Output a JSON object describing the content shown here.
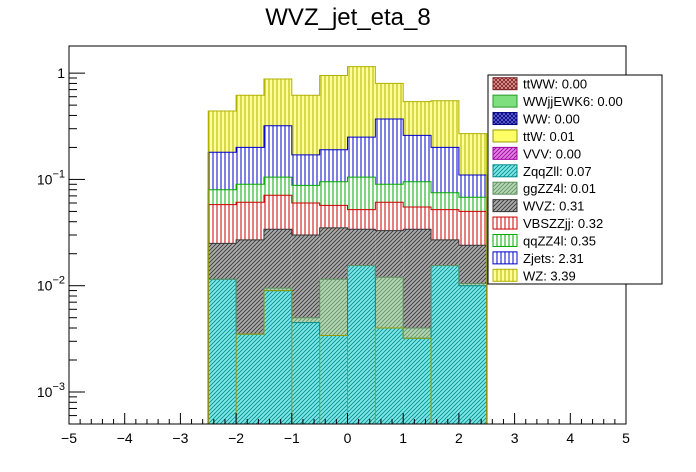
{
  "chart_data": {
    "type": "bar",
    "title": "WVZ_jet_eta_8",
    "xlabel": "",
    "ylabel": "",
    "stacked": true,
    "log_y": true,
    "xlim": [
      -5,
      5
    ],
    "ylim": [
      0.0005,
      1.8
    ],
    "grid": false,
    "legend_position": "top-right",
    "x_ticks": [
      -5,
      -4,
      -3,
      -2,
      -1,
      0,
      1,
      2,
      3,
      4,
      5
    ],
    "x_tick_labels": [
      "−5",
      "−4",
      "−3",
      "−2",
      "−1",
      "0",
      "1",
      "2",
      "3",
      "4",
      "5"
    ],
    "y_ticks": [
      0.001,
      0.01,
      0.1,
      1
    ],
    "y_tick_labels": [
      {
        "mantissa": "10",
        "exponent": "−3"
      },
      {
        "mantissa": "10",
        "exponent": "−2"
      },
      {
        "mantissa": "10",
        "exponent": "−1"
      },
      {
        "mantissa": "1",
        "exponent": ""
      }
    ],
    "bin_edges": [
      -2.5,
      -2.0,
      -1.5,
      -1.0,
      -0.5,
      0.0,
      0.5,
      1.0,
      1.5,
      2.0,
      2.5
    ],
    "stack_order": [
      "ZqqZll",
      "ggZZ4l",
      "WVZ",
      "VBSZZjj",
      "qqZZ4l",
      "Zjets",
      "WZ",
      "ttW"
    ],
    "cumulative_tops": {
      "ttW": [
        0.0005,
        0.0035,
        0.009,
        0.0005,
        0.0034,
        0.0005,
        0.004,
        0.0032,
        0.0005,
        0.0005
      ],
      "ZqqZll": [
        0.0115,
        0.0035,
        0.009,
        0.0045,
        0.0034,
        0.0155,
        0.004,
        0.0032,
        0.0155,
        0.01
      ],
      "ggZZ4l": [
        0.0115,
        0.0035,
        0.0095,
        0.005,
        0.0115,
        0.0155,
        0.012,
        0.004,
        0.0155,
        0.0105
      ],
      "WVZ": [
        0.025,
        0.027,
        0.034,
        0.03,
        0.035,
        0.034,
        0.033,
        0.034,
        0.027,
        0.024
      ],
      "VBSZZjj": [
        0.058,
        0.061,
        0.071,
        0.06,
        0.057,
        0.052,
        0.061,
        0.055,
        0.052,
        0.05
      ],
      "qqZZ4l": [
        0.08,
        0.09,
        0.105,
        0.088,
        0.095,
        0.105,
        0.09,
        0.095,
        0.075,
        0.068
      ],
      "Zjets": [
        0.18,
        0.2,
        0.32,
        0.17,
        0.19,
        0.25,
        0.37,
        0.26,
        0.2,
        0.11
      ],
      "WZ": [
        0.44,
        0.62,
        0.88,
        0.62,
        0.95,
        1.15,
        0.8,
        0.54,
        0.55,
        0.27
      ]
    },
    "legend": [
      {
        "label": "ttWW: 0.00",
        "key": "ttWW",
        "color": "#7a1f1f",
        "fill": "#e8a0a0",
        "pattern": "cross"
      },
      {
        "label": "WWjjEWK6: 0.00",
        "key": "WWjjEWK6",
        "color": "#2a9a2a",
        "fill": "#7ddf7d",
        "pattern": "solid"
      },
      {
        "label": "WW: 0.00",
        "key": "WW",
        "color": "#000080",
        "fill": "#6b6bd6",
        "pattern": "cross"
      },
      {
        "label": "ttW: 0.01",
        "key": "ttW",
        "color": "#999900",
        "fill": "#ffff66",
        "pattern": "solid"
      },
      {
        "label": "VVV: 0.00",
        "key": "VVV",
        "color": "#a000a0",
        "fill": "#e080e0",
        "pattern": "diag"
      },
      {
        "label": "ZqqZll: 0.07",
        "key": "ZqqZll",
        "color": "#008b8b",
        "fill": "#7fe7e7",
        "pattern": "diag"
      },
      {
        "label": "ggZZ4l: 0.01",
        "key": "ggZZ4l",
        "color": "#5f8f5f",
        "fill": "#b5d7b5",
        "pattern": "diag"
      },
      {
        "label": "WVZ: 0.31",
        "key": "WVZ",
        "color": "#333333",
        "fill": "#aaaaaa",
        "pattern": "diag"
      },
      {
        "label": "VBSZZjj: 0.32",
        "key": "VBSZZjj",
        "color": "#cc0000",
        "fill": "#ffffff",
        "pattern": "vert"
      },
      {
        "label": "qqZZ4l: 0.35",
        "key": "qqZZ4l",
        "color": "#00aa00",
        "fill": "#ffffff",
        "pattern": "vert"
      },
      {
        "label": "Zjets: 2.31",
        "key": "Zjets",
        "color": "#0000cc",
        "fill": "#ffffff",
        "pattern": "vert"
      },
      {
        "label": "WZ: 3.39",
        "key": "WZ",
        "color": "#b0b000",
        "fill": "#ffff99",
        "pattern": "vert"
      }
    ]
  }
}
